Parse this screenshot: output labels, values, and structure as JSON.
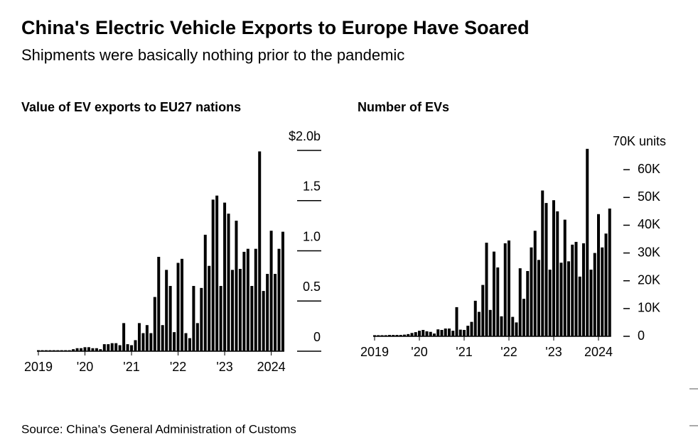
{
  "title": "China's Electric Vehicle Exports to Europe Have Soared",
  "subtitle": "Shipments were basically nothing prior to the pandemic",
  "source": "Source: China's General Administration of Customs",
  "chart_data": [
    {
      "type": "bar",
      "title": "Value of EV exports to EU27 nations",
      "color": "#000000",
      "categories": [
        "2019",
        null,
        null,
        null,
        null,
        null,
        null,
        null,
        null,
        null,
        null,
        null,
        "'20",
        null,
        null,
        null,
        null,
        null,
        null,
        null,
        null,
        null,
        null,
        null,
        "'21",
        null,
        null,
        null,
        null,
        null,
        null,
        null,
        null,
        null,
        null,
        null,
        "'22",
        null,
        null,
        null,
        null,
        null,
        null,
        null,
        null,
        null,
        null,
        null,
        "'23",
        null,
        null,
        null,
        null,
        null,
        null,
        null,
        null,
        null,
        null,
        null,
        "2024",
        null,
        null,
        null
      ],
      "values": [
        0.01,
        0.01,
        0.01,
        0.01,
        0.01,
        0.01,
        0.01,
        0.01,
        0.01,
        0.02,
        0.03,
        0.03,
        0.04,
        0.04,
        0.03,
        0.03,
        0.02,
        0.07,
        0.07,
        0.08,
        0.08,
        0.06,
        0.28,
        0.07,
        0.06,
        0.11,
        0.28,
        0.18,
        0.26,
        0.18,
        0.54,
        0.94,
        0.26,
        0.81,
        0.65,
        0.19,
        0.88,
        0.92,
        0.18,
        0.13,
        0.65,
        0.28,
        0.63,
        1.16,
        0.85,
        1.51,
        1.55,
        0.65,
        1.48,
        1.37,
        0.81,
        1.3,
        0.82,
        0.99,
        1.02,
        0.65,
        1.02,
        1.99,
        0.6,
        0.77,
        1.2,
        0.77,
        1.02,
        1.19
      ],
      "ylim": [
        0,
        2
      ],
      "yticks": [
        0,
        0.5,
        {
          "value": 1,
          "label": "1.0"
        },
        1.5,
        {
          "value": 2,
          "label": "$2.0b"
        }
      ]
    },
    {
      "type": "bar",
      "title": "Number of EVs",
      "color": "#000000",
      "categories": [
        "2019",
        null,
        null,
        null,
        null,
        null,
        null,
        null,
        null,
        null,
        null,
        null,
        "'20",
        null,
        null,
        null,
        null,
        null,
        null,
        null,
        null,
        null,
        null,
        null,
        "'21",
        null,
        null,
        null,
        null,
        null,
        null,
        null,
        null,
        null,
        null,
        null,
        "'22",
        null,
        null,
        null,
        null,
        null,
        null,
        null,
        null,
        null,
        null,
        null,
        "'23",
        null,
        null,
        null,
        null,
        null,
        null,
        null,
        null,
        null,
        null,
        null,
        "2024",
        null,
        null,
        null
      ],
      "values": [
        400,
        400,
        400,
        400,
        500,
        500,
        500,
        500,
        600,
        800,
        1200,
        1500,
        2000,
        2300,
        1800,
        1600,
        1000,
        2500,
        2300,
        2800,
        2800,
        2000,
        10500,
        2400,
        2300,
        3800,
        5200,
        12800,
        8800,
        18500,
        33700,
        9500,
        30500,
        24800,
        7200,
        33500,
        34500,
        7000,
        5000,
        24500,
        13500,
        23500,
        32000,
        38000,
        27500,
        52500,
        48000,
        24000,
        49000,
        45000,
        26500,
        42000,
        27000,
        33000,
        34000,
        21500,
        33500,
        67500,
        24000,
        30000,
        44000,
        32000,
        37000,
        46000
      ],
      "ylim": [
        0,
        70000
      ],
      "yticks": [
        0,
        {
          "value": 10000,
          "label": "10K"
        },
        {
          "value": 20000,
          "label": "20K"
        },
        {
          "value": 30000,
          "label": "30K"
        },
        {
          "value": 40000,
          "label": "40K"
        },
        {
          "value": 50000,
          "label": "50K"
        },
        {
          "value": 60000,
          "label": "60K"
        },
        {
          "value": 70000,
          "label": "70K units"
        }
      ]
    }
  ]
}
